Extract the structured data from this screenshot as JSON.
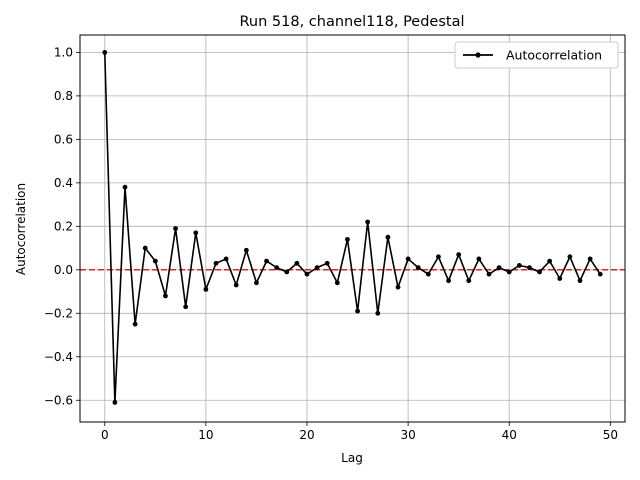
{
  "chart_data": {
    "type": "line",
    "title": "Run 518, channel118, Pedestal",
    "xlabel": "Lag",
    "ylabel": "Autocorrelation",
    "xlim": [
      -2.45,
      51.45
    ],
    "ylim": [
      -0.7,
      1.08
    ],
    "xticks": [
      0,
      10,
      20,
      30,
      40,
      50
    ],
    "yticks": [
      -0.6,
      -0.4,
      -0.2,
      0.0,
      0.2,
      0.4,
      0.6,
      0.8,
      1.0
    ],
    "ytick_labels": [
      "−0.6",
      "−0.4",
      "−0.2",
      "0.0",
      "0.2",
      "0.4",
      "0.6",
      "0.8",
      "1.0"
    ],
    "grid": true,
    "legend_position": "top-right",
    "series": [
      {
        "name": "Autocorrelation",
        "color": "#000000",
        "marker": "circle",
        "x": [
          0,
          1,
          2,
          3,
          4,
          5,
          6,
          7,
          8,
          9,
          10,
          11,
          12,
          13,
          14,
          15,
          16,
          17,
          18,
          19,
          20,
          21,
          22,
          23,
          24,
          25,
          26,
          27,
          28,
          29,
          30,
          31,
          32,
          33,
          34,
          35,
          36,
          37,
          38,
          39,
          40,
          41,
          42,
          43,
          44,
          45,
          46,
          47,
          48,
          49
        ],
        "values": [
          1.0,
          -0.61,
          0.38,
          -0.25,
          0.1,
          0.04,
          -0.12,
          0.19,
          -0.17,
          0.17,
          -0.09,
          0.03,
          0.05,
          -0.07,
          0.09,
          -0.06,
          0.04,
          0.01,
          -0.01,
          0.03,
          -0.02,
          0.01,
          0.03,
          -0.06,
          0.14,
          -0.19,
          0.22,
          -0.2,
          0.15,
          -0.08,
          0.05,
          0.01,
          -0.02,
          0.06,
          -0.05,
          0.07,
          -0.05,
          0.05,
          -0.02,
          0.01,
          -0.01,
          0.02,
          0.01,
          -0.01,
          0.04,
          -0.04,
          0.06,
          -0.05,
          0.05,
          -0.02
        ]
      }
    ],
    "reference_line": {
      "y": 0,
      "color": "#d62728",
      "style": "dashed"
    }
  }
}
